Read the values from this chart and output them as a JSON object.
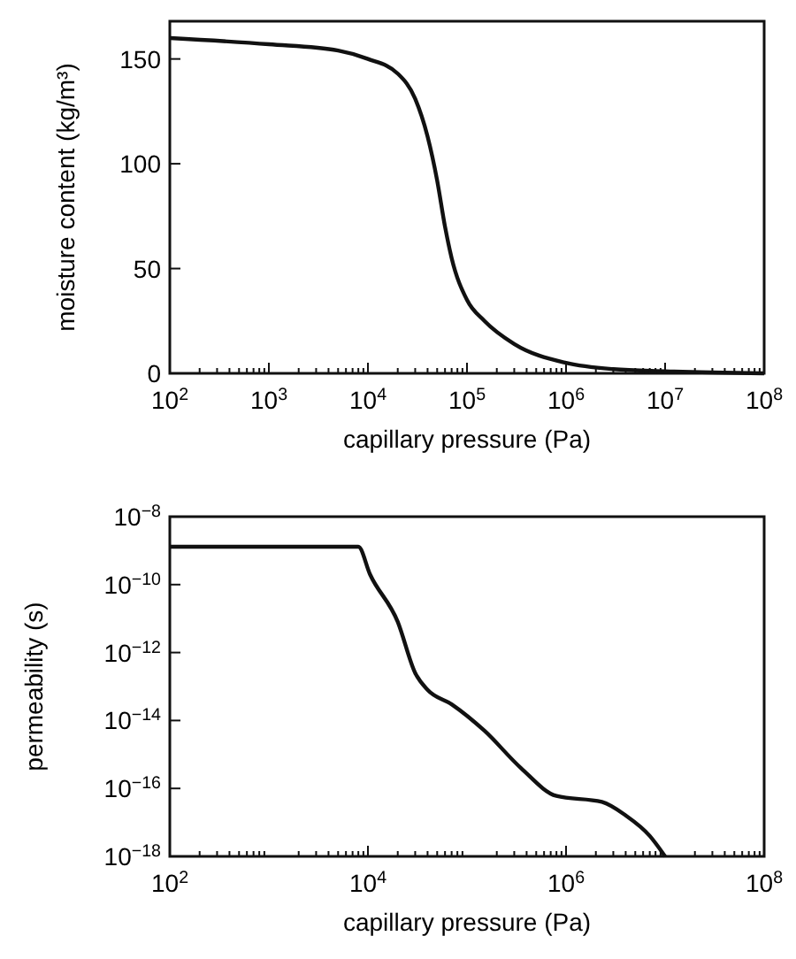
{
  "chart_data": [
    {
      "type": "line",
      "xlabel": "capillary pressure (Pa)",
      "ylabel": "moisture content (kg/m³)",
      "log": "x",
      "xlim": [
        100,
        100000000
      ],
      "xticks": [
        {
          "value": 100,
          "label": "10$^{2}$"
        },
        {
          "value": 1000,
          "label": "10$^{3}$"
        },
        {
          "value": 10000,
          "label": "10$^{4}$"
        },
        {
          "value": 100000,
          "label": "10$^{5}$"
        },
        {
          "value": 1000000,
          "label": "10$^{6}$"
        },
        {
          "value": 10000000,
          "label": "10$^{7}$"
        },
        {
          "value": 100000000,
          "label": "10$^{8}$"
        }
      ],
      "ylim": [
        0,
        168
      ],
      "yticks": [
        0,
        50,
        100,
        150
      ],
      "grid": false,
      "series": [
        {
          "color": "#111111",
          "x": [
            100,
            1000,
            5000,
            10000,
            20000,
            30000,
            40000,
            50000,
            60000,
            70000,
            100000,
            150000,
            300000,
            1000000,
            3000000,
            10000000,
            100000000
          ],
          "values": [
            160,
            157,
            154,
            150,
            143,
            131,
            113,
            92,
            70,
            55,
            35,
            25,
            14,
            5,
            2,
            1,
            0
          ]
        }
      ]
    },
    {
      "type": "line",
      "xlabel": "capillary pressure (Pa)",
      "ylabel": "permeability (s)",
      "log": "xy",
      "xlim": [
        100,
        100000000
      ],
      "xticks": [
        {
          "value": 100,
          "label": "10$^{2}$"
        },
        {
          "value": 10000,
          "label": "10$^{4}$"
        },
        {
          "value": 1000000,
          "label": "10$^{6}$"
        },
        {
          "value": 100000000,
          "label": "10$^{8}$"
        }
      ],
      "ylim": [
        1e-18,
        1e-08
      ],
      "yticks": [
        {
          "value": 1e-18,
          "label": "10$^{−18}$"
        },
        {
          "value": 1e-16,
          "label": "10$^{−16}$"
        },
        {
          "value": 1e-14,
          "label": "10$^{−14}$"
        },
        {
          "value": 1e-12,
          "label": "10$^{−12}$"
        },
        {
          "value": 1e-10,
          "label": "10$^{−10}$"
        },
        {
          "value": 1e-08,
          "label": "10$^{−8}$"
        }
      ],
      "grid": false,
      "series": [
        {
          "color": "#111111",
          "x": [
            100,
            8000,
            10500,
            20000,
            30000,
            40000,
            70000,
            150000,
            350000,
            800000,
            2300000,
            4000000,
            7000000,
            10000000
          ],
          "values": [
            1.3e-09,
            1.3e-09,
            2e-10,
            8e-12,
            2.5e-13,
            8e-14,
            3e-14,
            5e-15,
            4e-16,
            6e-17,
            4e-17,
            1.6e-17,
            4e-18,
            1e-18
          ]
        }
      ]
    }
  ]
}
